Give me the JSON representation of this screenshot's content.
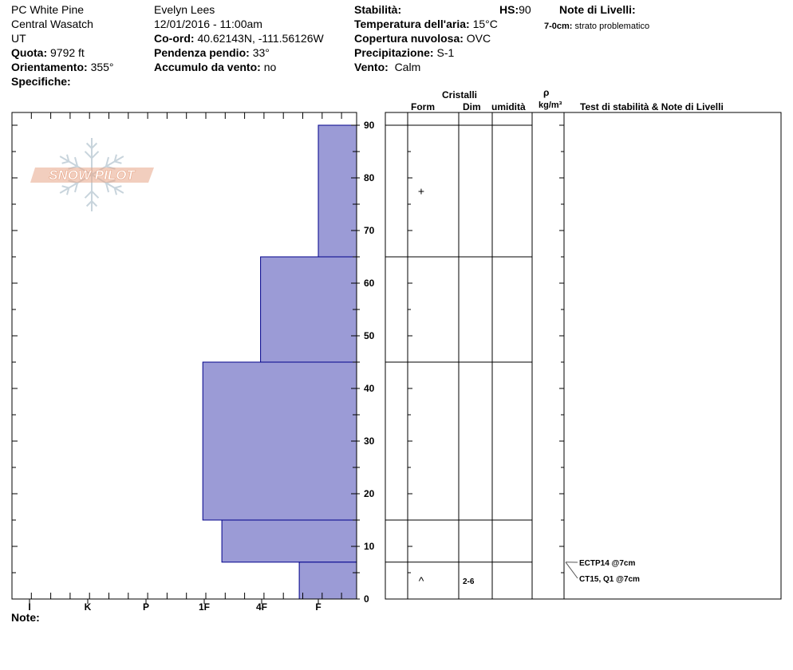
{
  "header": {
    "location": "PC White Pine",
    "range": "Central Wasatch",
    "state": "UT",
    "elevation_label": "Quota:",
    "elevation_value": "9792 ft",
    "aspect_label": "Orientamento:",
    "aspect_value": "355°",
    "specifics_label": "Specifiche:",
    "observer": "Evelyn Lees",
    "datetime": "12/01/2016 - 11:00am",
    "coord_label": "Co-ord:",
    "coord_value": "40.62143N, -111.56126W",
    "slope_label": "Pendenza pendio:",
    "slope_value": "33°",
    "wind_loading_label": "Accumulo da vento:",
    "wind_loading_value": "no",
    "stability_label": "Stabilità:",
    "hs_label": "HS:",
    "hs_value": "90",
    "air_temp_label": "Temperatura dell'aria:",
    "air_temp_value": "15°C",
    "cloud_label": "Copertura nuvolosa:",
    "cloud_value": "OVC",
    "precip_label": "Precipitazione:",
    "precip_value": "S-1",
    "wind_label": "Vento:",
    "wind_value": "Calm",
    "layer_notes_label": "Note di Livelli:",
    "layer_note_depth": "7-0cm:",
    "layer_note_text": "strato problematico"
  },
  "columns": {
    "crystals": "Cristalli",
    "form": "Form",
    "size": "Dim",
    "moisture": "umidità",
    "rho": "ρ",
    "density_unit": "kg/m³",
    "stability_notes": "Test di stabilità & Note di Livelli"
  },
  "footer": {
    "notes_label": "Note:"
  },
  "logo_text": "SNOW PILOT",
  "colors": {
    "hardness_fill": "#9b9bd6",
    "hardness_stroke": "#00008b",
    "logo": "#e8a688"
  },
  "chart_data": {
    "type": "bar",
    "orientation": "horizontal-step",
    "title": "",
    "x_categories": [
      "I",
      "K",
      "P",
      "1F",
      "4F",
      "F"
    ],
    "y_ticks": [
      0,
      10,
      20,
      30,
      40,
      50,
      60,
      70,
      80,
      90
    ],
    "ylim": [
      0,
      93
    ],
    "hardness_layers": [
      {
        "top": 90,
        "bottom": 65,
        "hardness": "F"
      },
      {
        "top": 65,
        "bottom": 45,
        "hardness": "4F"
      },
      {
        "top": 45,
        "bottom": 15,
        "hardness": "1F"
      },
      {
        "top": 15,
        "bottom": 7,
        "hardness": "1F+"
      },
      {
        "top": 7,
        "bottom": 0,
        "hardness": "F+"
      }
    ],
    "hardness_index": {
      "I": 6,
      "K": 5,
      "P": 4,
      "1F": 3,
      "1F+": 2.67,
      "4F": 2,
      "F+": 1.33,
      "F": 1
    },
    "layer_boundaries": [
      90,
      65,
      45,
      15,
      7
    ],
    "grain_forms": [
      {
        "depth": 77.5,
        "symbol": "+"
      },
      {
        "depth": 3.5,
        "symbol": "^"
      }
    ],
    "grain_sizes": [
      {
        "depth": 3.5,
        "value": "2-6"
      }
    ],
    "stability_tests": [
      {
        "depth": 7,
        "label": "ECTP14 @7cm"
      },
      {
        "depth": 7,
        "label": "CT15, Q1 @7cm"
      }
    ]
  }
}
